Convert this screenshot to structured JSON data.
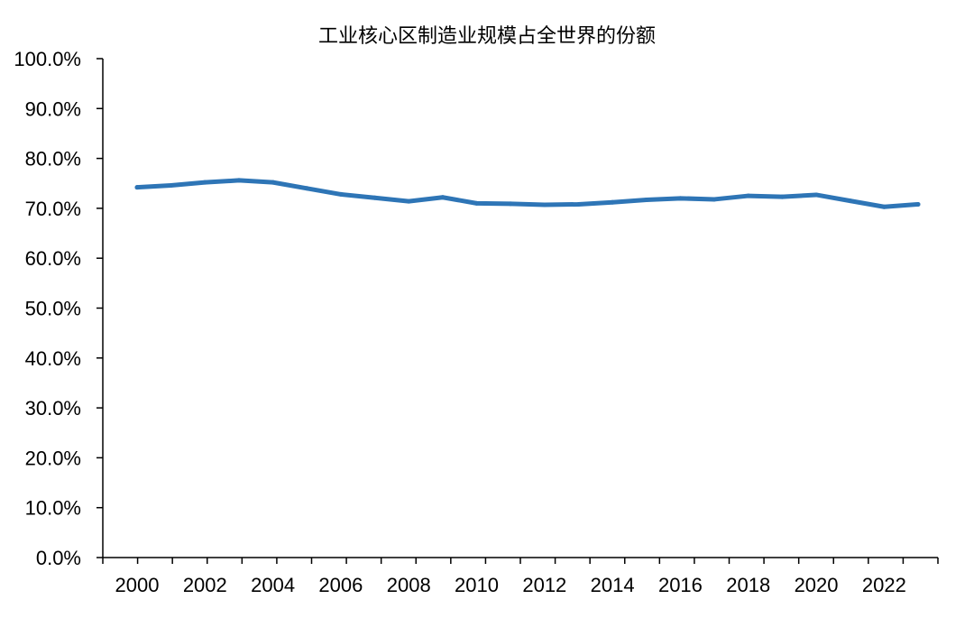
{
  "chart_data": {
    "type": "line",
    "title": "工业核心区制造业规模占全世界的份额",
    "xlabel": "",
    "ylabel": "",
    "x": [
      2000,
      2001,
      2002,
      2003,
      2004,
      2005,
      2006,
      2007,
      2008,
      2009,
      2010,
      2011,
      2012,
      2013,
      2014,
      2015,
      2016,
      2017,
      2018,
      2019,
      2020,
      2021,
      2022,
      2023
    ],
    "x_tick_labels": [
      "2000",
      "2002",
      "2004",
      "2006",
      "2008",
      "2010",
      "2012",
      "2014",
      "2016",
      "2018",
      "2020",
      "2022"
    ],
    "y_tick_labels": [
      "0.0%",
      "10.0%",
      "20.0%",
      "30.0%",
      "40.0%",
      "50.0%",
      "60.0%",
      "70.0%",
      "80.0%",
      "90.0%",
      "100.0%"
    ],
    "ylim": [
      0,
      100
    ],
    "grid": false,
    "series": [
      {
        "values": [
          74.2,
          74.6,
          75.2,
          75.6,
          75.2,
          74.0,
          72.8,
          72.1,
          71.4,
          72.2,
          71.0,
          70.9,
          70.7,
          70.8,
          71.2,
          71.7,
          72.0,
          71.8,
          72.5,
          72.3,
          72.7,
          71.5,
          70.3,
          70.8
        ],
        "color": "#2E75B6"
      }
    ]
  }
}
